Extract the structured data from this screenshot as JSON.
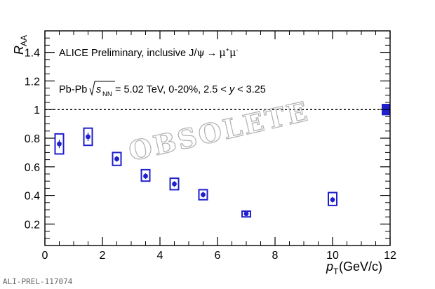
{
  "chart_data": {
    "type": "scatter",
    "ylabel_main": "R",
    "ylabel_sub": "AA",
    "xlabel_main": "p",
    "xlabel_sub": "T",
    "xlabel_unit": " (GeV/c)",
    "xlim": [
      0,
      12
    ],
    "ylim": [
      0.05,
      1.55
    ],
    "x_ticks": [
      0,
      2,
      4,
      6,
      8,
      10,
      12
    ],
    "x_tick_labels": [
      "0",
      "2",
      "4",
      "6",
      "8",
      "10",
      "12"
    ],
    "y_ticks": [
      0.2,
      0.4,
      0.6,
      0.8,
      1,
      1.2,
      1.4
    ],
    "y_tick_labels": [
      "0.2",
      "0.4",
      "0.6",
      "0.8",
      "1",
      "1.2",
      "1.4"
    ],
    "reference_line": 1,
    "global_uncertainty": [
      0.96,
      1.04
    ],
    "annotation_line1_prefix": "ALICE Preliminary, inclusive J/",
    "annotation_line1_psi": "ψ",
    "annotation_line1_arrow": "→",
    "annotation_line1_mu": "μ",
    "annotation_line1_plus": "+",
    "annotation_line1_minus": "-",
    "annotation_line2_system": "Pb-Pb",
    "annotation_line2_s": "s",
    "annotation_line2_nn": "NN",
    "annotation_line2_energy": " = 5.02 TeV, 0-20%, 2.5 < ",
    "annotation_line2_y": "y",
    "annotation_line2_end": " < 3.25",
    "watermark": "OBSOLETE",
    "footer": "ALI-PREL-117074",
    "color": "#1f1fcc",
    "points": [
      {
        "x": 0.5,
        "y": 0.76,
        "stat": 0.03,
        "sys_low": 0.69,
        "sys_high": 0.83
      },
      {
        "x": 1.5,
        "y": 0.81,
        "stat": 0.03,
        "sys_low": 0.75,
        "sys_high": 0.87
      },
      {
        "x": 2.5,
        "y": 0.655,
        "stat": 0.02,
        "sys_low": 0.61,
        "sys_high": 0.7
      },
      {
        "x": 3.5,
        "y": 0.535,
        "stat": 0.02,
        "sys_low": 0.5,
        "sys_high": 0.58
      },
      {
        "x": 4.5,
        "y": 0.48,
        "stat": 0.02,
        "sys_low": 0.44,
        "sys_high": 0.52
      },
      {
        "x": 5.5,
        "y": 0.405,
        "stat": 0.02,
        "sys_low": 0.37,
        "sys_high": 0.44
      },
      {
        "x": 7.0,
        "y": 0.272,
        "stat": 0.01,
        "sys_low": 0.25,
        "sys_high": 0.29
      },
      {
        "x": 10.0,
        "y": 0.37,
        "stat": 0.02,
        "sys_low": 0.33,
        "sys_high": 0.42
      }
    ]
  }
}
